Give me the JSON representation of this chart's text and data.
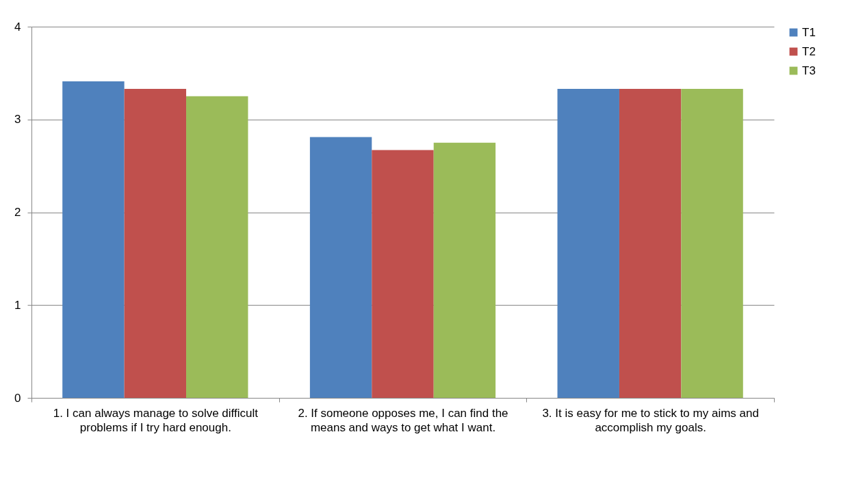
{
  "chart_data": {
    "type": "bar",
    "categories": [
      "1. I can always manage to solve difficult  problems if I try hard enough.",
      "2. If someone opposes me, I can find the means and ways to get what I want.",
      "3. It is easy for me to stick to my aims and accomplish my goals."
    ],
    "series": [
      {
        "name": "T1",
        "color": "#4f81bd",
        "values": [
          3.41,
          2.81,
          3.33
        ]
      },
      {
        "name": "T2",
        "color": "#c0504d",
        "values": [
          3.33,
          2.67,
          3.33
        ]
      },
      {
        "name": "T3",
        "color": "#9bbb59",
        "values": [
          3.25,
          2.75,
          3.33
        ]
      }
    ],
    "ylim": [
      0,
      4
    ],
    "yticks": [
      0,
      1,
      2,
      3,
      4
    ],
    "grid": "y",
    "legend": "right"
  }
}
